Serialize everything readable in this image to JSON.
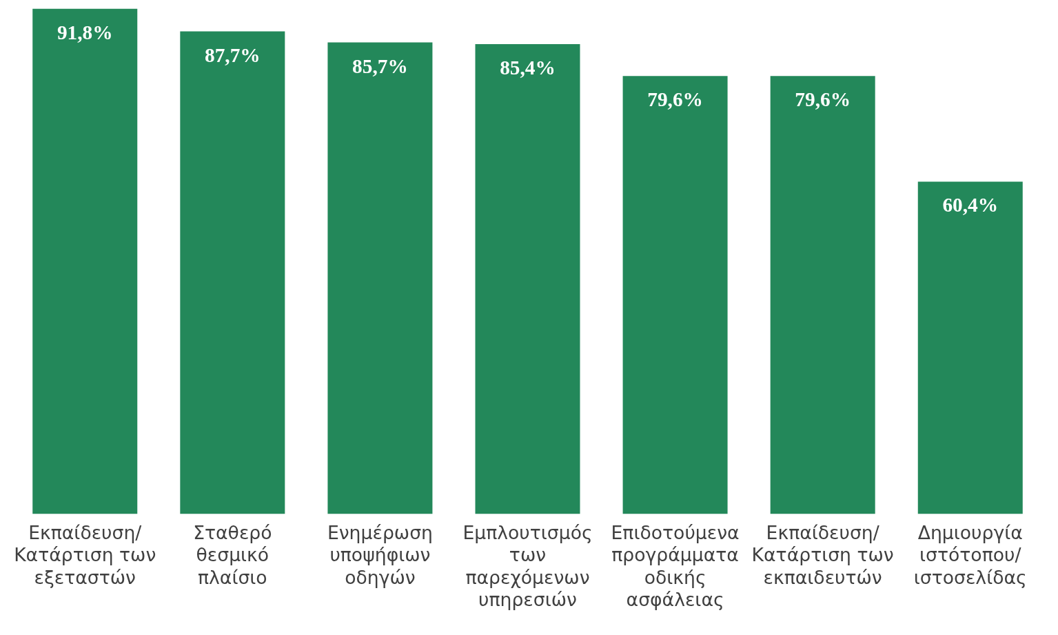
{
  "chart_data": {
    "type": "bar",
    "categories": [
      "Εκπαίδευση/ Κατάρτιση των εξεταστών",
      "Σταθερό θεσμικό πλαίσιο",
      "Ενημέρωση υποψήφιων οδηγών",
      "Εμπλουτισμός των παρεχόμενων υπηρεσιών",
      "Επιδοτούμενα προγράμματα οδικής ασφάλειας",
      "Εκπαίδευση/ Κατάρτιση των εκπαιδευτών",
      "Δημιουργία ιστότοπου/ ιστοσελίδας"
    ],
    "values": [
      91.8,
      87.7,
      85.7,
      85.4,
      79.6,
      79.6,
      60.4
    ],
    "value_labels": [
      "91,8%",
      "87,7%",
      "85,7%",
      "85,4%",
      "79,6%",
      "79,6%",
      "60,4%"
    ],
    "color": "#23885a"
  }
}
